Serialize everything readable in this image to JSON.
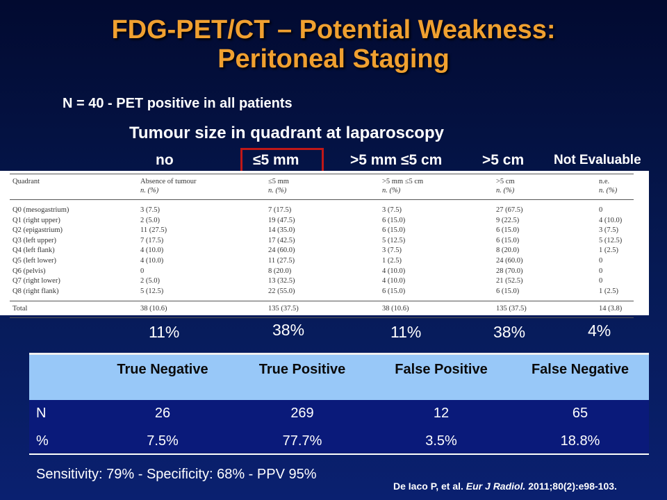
{
  "slide": {
    "title_line1": "FDG-PET/CT – Potential Weakness:",
    "title_line2": "Peritoneal Staging",
    "n_line": "N = 40  -  PET positive in all patients",
    "tumour_heading": "Tumour size in quadrant at laparoscopy",
    "col_headers": [
      "no",
      "≤5 mm",
      ">5 mm ≤5 cm",
      ">5 cm",
      "Not Evaluable"
    ],
    "percentages": [
      "11%",
      "38%",
      "11%",
      "38%",
      "4%"
    ],
    "sensitivity_line": "Sensitivity: 79% - Specificity: 68%  - PPV 95%",
    "citation_authors": "De Iaco P, et al. ",
    "citation_journal": "Eur J Radiol.",
    "citation_rest": " 2011;80(2):e98-103.",
    "colors": {
      "title": "#f0a030",
      "highlight_border": "#c01818",
      "header_fill": "#98c8f8",
      "row_fill": "#0a1a7a"
    }
  },
  "paper_table": {
    "headers": [
      {
        "main": "Quadrant",
        "sub": ""
      },
      {
        "main": "Absence of tumour",
        "sub": "n. (%)"
      },
      {
        "main": "≤5 mm",
        "sub": "n. (%)"
      },
      {
        "main": ">5 mm ≤5 cm",
        "sub": "n. (%)"
      },
      {
        "main": ">5 cm",
        "sub": "n. (%)"
      },
      {
        "main": "n.e.",
        "sub": "n. (%)"
      }
    ],
    "rows": [
      [
        "Q0 (mesogastrium)",
        "3 (7.5)",
        "7 (17.5)",
        "3 (7.5)",
        "27 (67.5)",
        "0"
      ],
      [
        "Q1 (right upper)",
        "2 (5.0)",
        "19 (47.5)",
        "6 (15.0)",
        "9 (22.5)",
        "4 (10.0)"
      ],
      [
        "Q2 (epigastrium)",
        "11 (27.5)",
        "14 (35.0)",
        "6 (15.0)",
        "6 (15.0)",
        "3 (7.5)"
      ],
      [
        "Q3 (left upper)",
        "7 (17.5)",
        "17 (42.5)",
        "5 (12.5)",
        "6 (15.0)",
        "5 (12.5)"
      ],
      [
        "Q4 (left flank)",
        "4 (10.0)",
        "24 (60.0)",
        "3 (7.5)",
        "8 (20.0)",
        "1 (2.5)"
      ],
      [
        "Q5 (left lower)",
        "4 (10.0)",
        "11 (27.5)",
        "1 (2.5)",
        "24 (60.0)",
        "0"
      ],
      [
        "Q6 (pelvis)",
        "0",
        "8 (20.0)",
        "4 (10.0)",
        "28 (70.0)",
        "0"
      ],
      [
        "Q7 (right lower)",
        "2 (5.0)",
        "13 (32.5)",
        "4 (10.0)",
        "21 (52.5)",
        "0"
      ],
      [
        "Q8 (right flank)",
        "5 (12.5)",
        "22 (55.0)",
        "6 (15.0)",
        "6 (15.0)",
        "1 (2.5)"
      ]
    ],
    "total": [
      "Total",
      "38 (10.6)",
      "135 (37.5)",
      "38 (10.6)",
      "135 (37.5)",
      "14 (3.8)"
    ]
  },
  "results_table": {
    "headers": [
      "True Negative",
      "True Positive",
      "False Positive",
      "False Negative"
    ],
    "rows": [
      {
        "label": "N",
        "values": [
          "26",
          "269",
          "12",
          "65"
        ]
      },
      {
        "label": "%",
        "values": [
          "7.5%",
          "77.7%",
          "3.5%",
          "18.8%"
        ]
      }
    ]
  }
}
